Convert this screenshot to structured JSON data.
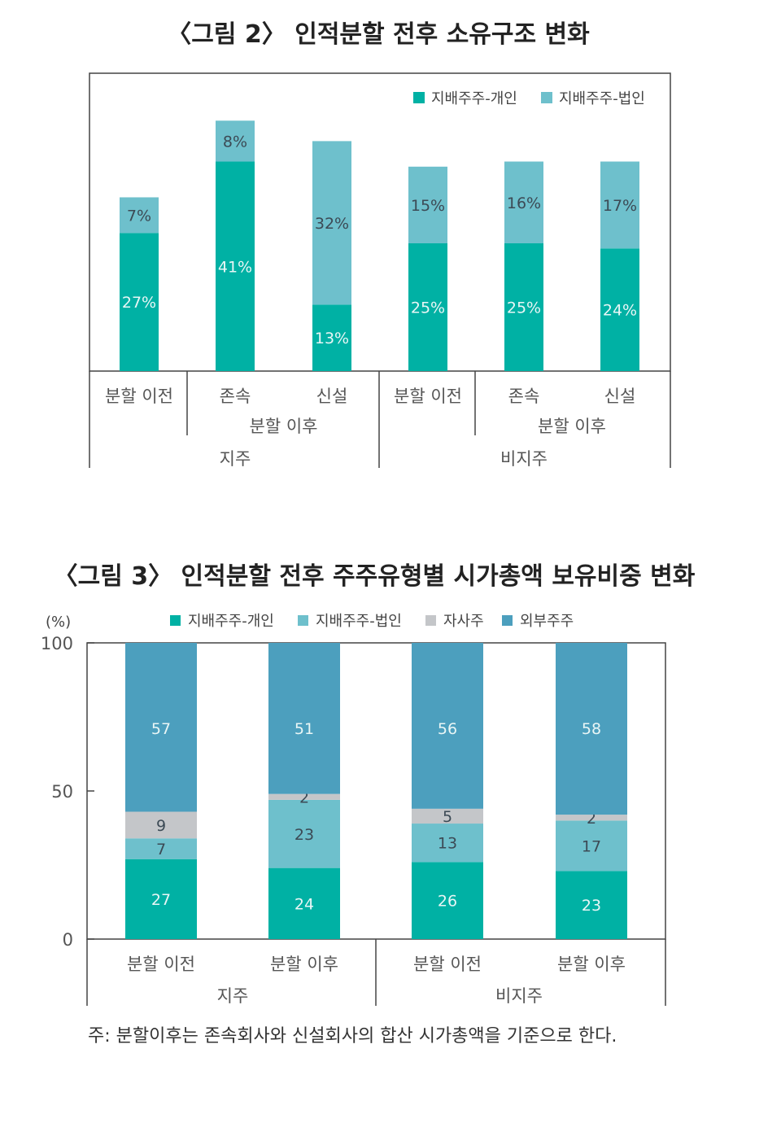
{
  "colors": {
    "individual": "#00b1a4",
    "corporate": "#6ec0cc",
    "treasury": "#c4c6c9",
    "external": "#4c9fbe",
    "frame": "#444444"
  },
  "chart_data": [
    {
      "type": "bar",
      "stacked": true,
      "title": "〈그림 2〉 인적분할 전후 소유구조 변화",
      "legend_position": "top-right",
      "ylim": [
        0,
        55
      ],
      "categories": [
        "분할 이전",
        "존속",
        "신설",
        "분할 이전",
        "존속",
        "신설"
      ],
      "sub_groups": [
        {
          "label": "분할 이후",
          "span": [
            1,
            2
          ]
        },
        {
          "label": "분할 이후",
          "span": [
            4,
            5
          ]
        }
      ],
      "groups": [
        {
          "label": "지주",
          "span": [
            0,
            2
          ]
        },
        {
          "label": "비지주",
          "span": [
            3,
            5
          ]
        }
      ],
      "series": [
        {
          "name": "지배주주-개인",
          "color_key": "individual",
          "values": [
            27,
            41,
            13,
            25,
            25,
            24
          ],
          "labels": [
            "27%",
            "41%",
            "13%",
            "25%",
            "25%",
            "24%"
          ]
        },
        {
          "name": "지배주주-법인",
          "color_key": "corporate",
          "values": [
            7,
            8,
            32,
            15,
            16,
            17
          ],
          "labels": [
            "7%",
            "8%",
            "32%",
            "15%",
            "16%",
            "17%"
          ]
        }
      ]
    },
    {
      "type": "bar",
      "stacked": true,
      "title": "〈그림 3〉 인적분할 전후 주주유형별 시가총액 보유비중 변화",
      "unit_label": "(%)",
      "legend_position": "top",
      "ylim": [
        0,
        100
      ],
      "yticks": [
        0,
        50,
        100
      ],
      "categories": [
        "분할 이전",
        "분할 이후",
        "분할 이전",
        "분할 이후"
      ],
      "groups": [
        {
          "label": "지주",
          "span": [
            0,
            1
          ]
        },
        {
          "label": "비지주",
          "span": [
            2,
            3
          ]
        }
      ],
      "series": [
        {
          "name": "지배주주-개인",
          "color_key": "individual",
          "values": [
            27,
            24,
            26,
            23
          ]
        },
        {
          "name": "지배주주-법인",
          "color_key": "corporate",
          "values": [
            7,
            23,
            13,
            17
          ]
        },
        {
          "name": "자사주",
          "color_key": "treasury",
          "values": [
            9,
            2,
            5,
            2
          ]
        },
        {
          "name": "외부주주",
          "color_key": "external",
          "values": [
            57,
            51,
            56,
            58
          ]
        }
      ],
      "note": "주: 분할이후는 존속회사와 신설회사의 합산 시가총액을 기준으로 한다."
    }
  ]
}
